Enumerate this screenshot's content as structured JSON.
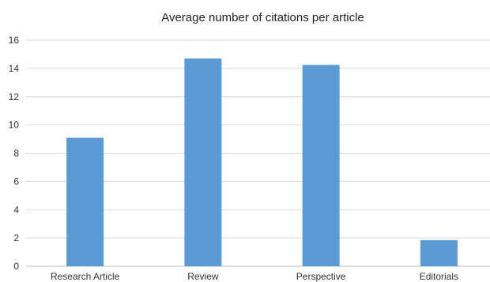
{
  "chart_data": {
    "type": "bar",
    "title": "Average number of citations per article",
    "categories": [
      "Research Article",
      "Review",
      "Perspective",
      "Editorials"
    ],
    "values": [
      9.1,
      14.7,
      14.25,
      1.85
    ],
    "ylim": [
      0,
      16
    ],
    "yticks": [
      0,
      2,
      4,
      6,
      8,
      10,
      12,
      14,
      16
    ],
    "xlabel": "",
    "ylabel": "",
    "grid": true,
    "legend": "none",
    "colors": {
      "bar": "#5b9bd5",
      "grid": "#d9d9d9",
      "axis": "#bfbfbf"
    }
  }
}
